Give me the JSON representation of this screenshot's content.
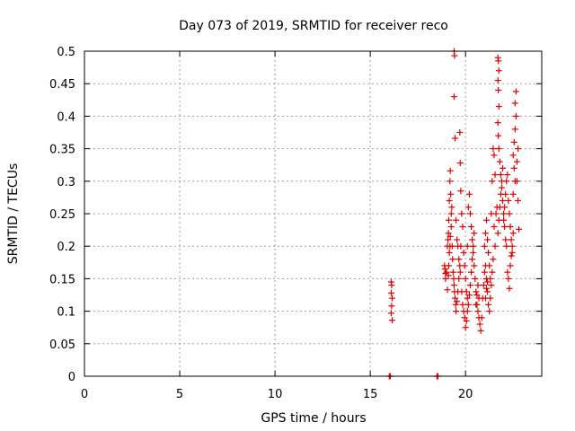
{
  "chart_data": {
    "type": "scatter",
    "title": "Day 073 of 2019, SRMTID for receiver reco",
    "xlabel": "GPS time / hours",
    "ylabel": "SRMTID / TECUs",
    "xlim": [
      0,
      24
    ],
    "ylim": [
      0,
      0.5
    ],
    "x_ticks": [
      0,
      5,
      10,
      15,
      20
    ],
    "x_tick_labels": [
      "0",
      "5",
      "10",
      "15",
      "20"
    ],
    "y_ticks": [
      0,
      0.05,
      0.1,
      0.15,
      0.2,
      0.25,
      0.3,
      0.35,
      0.4,
      0.45,
      0.5
    ],
    "y_tick_labels": [
      "0",
      "0.05",
      "0.1",
      "0.15",
      "0.2",
      "0.25",
      "0.3",
      "0.35",
      "0.4",
      "0.45",
      "0.5"
    ],
    "grid": true,
    "marker": "+",
    "color": "#e00000",
    "series": [
      {
        "name": "SRMTID",
        "points": [
          [
            16.0,
            0.0
          ],
          [
            16.05,
            0.0
          ],
          [
            18.5,
            0.0
          ],
          [
            18.55,
            0.0
          ],
          [
            16.1,
            0.145
          ],
          [
            16.12,
            0.14
          ],
          [
            16.1,
            0.128
          ],
          [
            16.15,
            0.12
          ],
          [
            16.12,
            0.108
          ],
          [
            16.1,
            0.097
          ],
          [
            16.15,
            0.086
          ],
          [
            18.9,
            0.17
          ],
          [
            18.92,
            0.165
          ],
          [
            18.95,
            0.158
          ],
          [
            19.0,
            0.16
          ],
          [
            18.95,
            0.15
          ],
          [
            19.05,
            0.2
          ],
          [
            19.08,
            0.21
          ],
          [
            19.1,
            0.22
          ],
          [
            19.12,
            0.24
          ],
          [
            19.15,
            0.27
          ],
          [
            19.18,
            0.3
          ],
          [
            19.2,
            0.316
          ],
          [
            19.22,
            0.28
          ],
          [
            19.25,
            0.25
          ],
          [
            19.05,
            0.133
          ],
          [
            19.1,
            0.155
          ],
          [
            19.12,
            0.17
          ],
          [
            19.15,
            0.19
          ],
          [
            19.18,
            0.2
          ],
          [
            19.2,
            0.215
          ],
          [
            19.25,
            0.23
          ],
          [
            19.28,
            0.26
          ],
          [
            19.3,
            0.2
          ],
          [
            19.32,
            0.18
          ],
          [
            19.35,
            0.16
          ],
          [
            19.38,
            0.15
          ],
          [
            19.4,
            0.14
          ],
          [
            19.42,
            0.13
          ],
          [
            19.45,
            0.12
          ],
          [
            19.48,
            0.11
          ],
          [
            19.5,
            0.1
          ],
          [
            19.55,
            0.115
          ],
          [
            19.6,
            0.13
          ],
          [
            19.65,
            0.15
          ],
          [
            19.4,
            0.5
          ],
          [
            19.42,
            0.493
          ],
          [
            19.4,
            0.43
          ],
          [
            19.45,
            0.366
          ],
          [
            19.5,
            0.24
          ],
          [
            19.55,
            0.21
          ],
          [
            19.6,
            0.2
          ],
          [
            19.65,
            0.18
          ],
          [
            19.7,
            0.17
          ],
          [
            19.72,
            0.16
          ],
          [
            19.75,
            0.2
          ],
          [
            19.7,
            0.375
          ],
          [
            19.72,
            0.328
          ],
          [
            19.75,
            0.285
          ],
          [
            19.8,
            0.25
          ],
          [
            19.85,
            0.23
          ],
          [
            19.9,
            0.19
          ],
          [
            19.95,
            0.17
          ],
          [
            20.0,
            0.15
          ],
          [
            20.05,
            0.13
          ],
          [
            20.1,
            0.12
          ],
          [
            19.8,
            0.13
          ],
          [
            19.85,
            0.11
          ],
          [
            19.9,
            0.1
          ],
          [
            19.95,
            0.09
          ],
          [
            20.0,
            0.075
          ],
          [
            20.05,
            0.085
          ],
          [
            20.1,
            0.1
          ],
          [
            20.15,
            0.11
          ],
          [
            20.2,
            0.125
          ],
          [
            20.25,
            0.14
          ],
          [
            20.3,
            0.16
          ],
          [
            20.35,
            0.18
          ],
          [
            20.4,
            0.2
          ],
          [
            20.45,
            0.22
          ],
          [
            20.1,
            0.2
          ],
          [
            20.15,
            0.26
          ],
          [
            20.2,
            0.28
          ],
          [
            20.25,
            0.25
          ],
          [
            20.3,
            0.23
          ],
          [
            20.35,
            0.21
          ],
          [
            20.4,
            0.19
          ],
          [
            20.45,
            0.17
          ],
          [
            20.5,
            0.15
          ],
          [
            20.55,
            0.13
          ],
          [
            20.6,
            0.11
          ],
          [
            20.65,
            0.1
          ],
          [
            20.7,
            0.09
          ],
          [
            20.75,
            0.08
          ],
          [
            20.8,
            0.07
          ],
          [
            20.85,
            0.09
          ],
          [
            20.9,
            0.12
          ],
          [
            20.95,
            0.14
          ],
          [
            21.0,
            0.16
          ],
          [
            21.05,
            0.17
          ],
          [
            21.1,
            0.15
          ],
          [
            21.15,
            0.13
          ],
          [
            21.2,
            0.11
          ],
          [
            21.25,
            0.1
          ],
          [
            21.3,
            0.12
          ],
          [
            21.35,
            0.14
          ],
          [
            21.4,
            0.16
          ],
          [
            21.45,
            0.18
          ],
          [
            21.0,
            0.2
          ],
          [
            21.05,
            0.22
          ],
          [
            21.1,
            0.24
          ],
          [
            21.15,
            0.21
          ],
          [
            21.2,
            0.19
          ],
          [
            21.25,
            0.17
          ],
          [
            21.3,
            0.15
          ],
          [
            21.35,
            0.25
          ],
          [
            21.4,
            0.3
          ],
          [
            21.45,
            0.35
          ],
          [
            21.5,
            0.34
          ],
          [
            21.55,
            0.31
          ],
          [
            21.5,
            0.23
          ],
          [
            21.55,
            0.2
          ],
          [
            21.6,
            0.25
          ],
          [
            21.65,
            0.26
          ],
          [
            21.7,
            0.22
          ],
          [
            21.75,
            0.24
          ],
          [
            21.7,
            0.49
          ],
          [
            21.72,
            0.485
          ],
          [
            21.75,
            0.47
          ],
          [
            21.7,
            0.455
          ],
          [
            21.72,
            0.44
          ],
          [
            21.75,
            0.415
          ],
          [
            21.7,
            0.39
          ],
          [
            21.72,
            0.37
          ],
          [
            21.75,
            0.35
          ],
          [
            21.8,
            0.33
          ],
          [
            21.85,
            0.31
          ],
          [
            21.9,
            0.29
          ],
          [
            21.95,
            0.27
          ],
          [
            22.0,
            0.25
          ],
          [
            22.05,
            0.23
          ],
          [
            22.1,
            0.21
          ],
          [
            22.15,
            0.2
          ],
          [
            21.8,
            0.26
          ],
          [
            21.85,
            0.28
          ],
          [
            21.9,
            0.3
          ],
          [
            21.95,
            0.32
          ],
          [
            22.0,
            0.24
          ],
          [
            22.05,
            0.26
          ],
          [
            22.1,
            0.28
          ],
          [
            22.15,
            0.3
          ],
          [
            22.2,
            0.31
          ],
          [
            22.25,
            0.27
          ],
          [
            22.3,
            0.25
          ],
          [
            22.35,
            0.23
          ],
          [
            22.4,
            0.21
          ],
          [
            22.45,
            0.19
          ],
          [
            22.2,
            0.16
          ],
          [
            22.25,
            0.15
          ],
          [
            22.3,
            0.135
          ],
          [
            22.35,
            0.17
          ],
          [
            22.4,
            0.185
          ],
          [
            22.45,
            0.2
          ],
          [
            22.5,
            0.22
          ],
          [
            22.5,
            0.34
          ],
          [
            22.55,
            0.36
          ],
          [
            22.6,
            0.38
          ],
          [
            22.65,
            0.4
          ],
          [
            22.6,
            0.42
          ],
          [
            22.65,
            0.438
          ],
          [
            22.7,
            0.33
          ],
          [
            22.75,
            0.35
          ],
          [
            22.7,
            0.3
          ],
          [
            22.75,
            0.27
          ],
          [
            22.8,
            0.226
          ],
          [
            22.55,
            0.32
          ],
          [
            22.6,
            0.3
          ],
          [
            22.5,
            0.28
          ],
          [
            21.05,
            0.12
          ],
          [
            21.1,
            0.135
          ],
          [
            21.15,
            0.145
          ],
          [
            20.55,
            0.11
          ],
          [
            20.6,
            0.125
          ],
          [
            20.65,
            0.14
          ],
          [
            20.7,
            0.12
          ]
        ]
      }
    ]
  }
}
